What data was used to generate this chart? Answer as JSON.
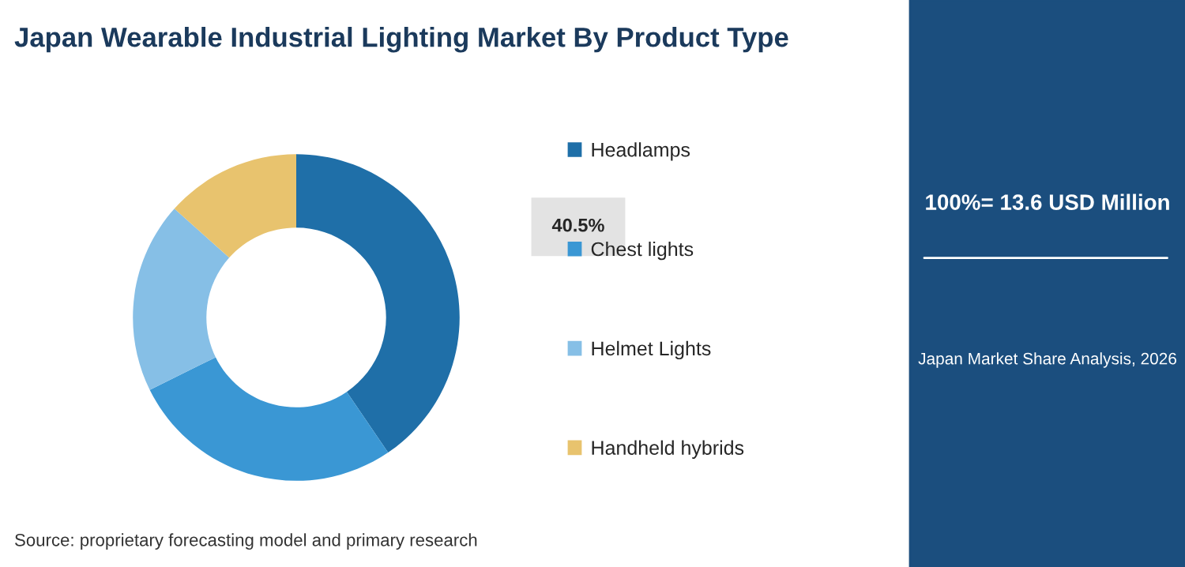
{
  "chart_data": {
    "type": "donut",
    "title": "Japan Wearable Industrial Lighting Market By Product Type",
    "categories": [
      "Headlamps",
      "Chest lights",
      "Helmet Lights",
      "Handheld hybrids"
    ],
    "values": [
      40.5,
      27.2,
      18.9,
      13.4
    ],
    "colors": [
      "#1f6fa8",
      "#3a97d4",
      "#86bfe6",
      "#e8c36e"
    ],
    "value_labels": [
      "40.5%",
      null,
      null,
      null
    ],
    "legend": "right",
    "annotations": [
      "100%= 13.6 USD Million",
      "Japan Market Share Analysis, 2026",
      "Source: proprietary forecasting model and primary research"
    ]
  }
}
